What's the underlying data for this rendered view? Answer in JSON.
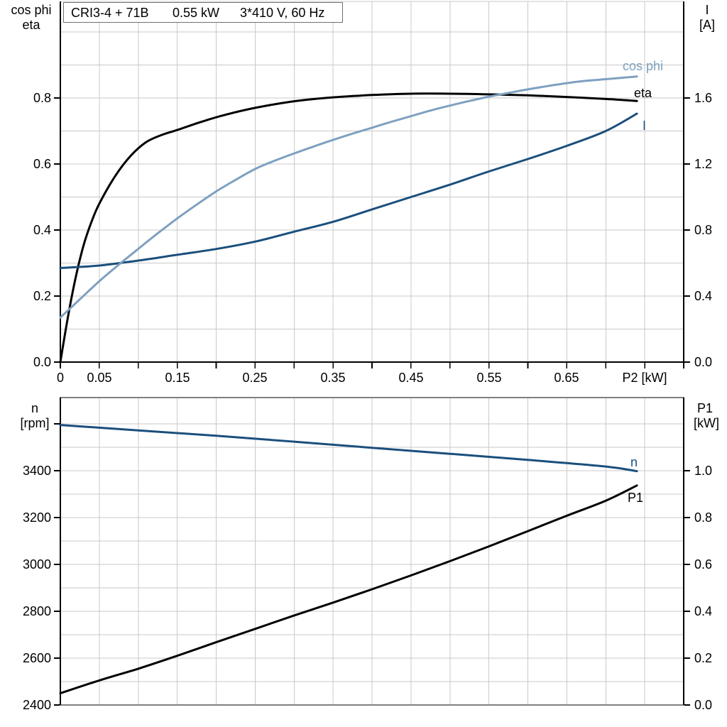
{
  "header": {
    "title_model": "CRI3-4 + 71B",
    "title_power": "0.55 kW",
    "title_supply": "3*410 V, 60 Hz"
  },
  "colors": {
    "dark_blue": "#1a4f7c",
    "light_blue": "#7ea0c0",
    "black": "#000000",
    "grid": "#c9c9c9",
    "frame_gray": "#808080"
  },
  "top_chart": {
    "left_axis_title": [
      "cos phi",
      "eta"
    ],
    "right_axis_title": [
      "I",
      "[A]"
    ],
    "x_axis_title": "P2 [kW]",
    "x_ticks": [
      "0",
      "0.05",
      "0.15",
      "0.25",
      "0.35",
      "0.45",
      "0.55",
      "0.65"
    ],
    "left_ticks": [
      "0.0",
      "0.2",
      "0.4",
      "0.6",
      "0.8"
    ],
    "right_ticks": [
      "0.0",
      "0.4",
      "0.8",
      "1.2",
      "1.6"
    ],
    "curve_labels": {
      "cos_phi": "cos phi",
      "eta": "eta",
      "current": "I"
    }
  },
  "bottom_chart": {
    "left_axis_title": [
      "n",
      "[rpm]"
    ],
    "right_axis_title": [
      "P1",
      "[kW]"
    ],
    "left_ticks": [
      "2400",
      "2600",
      "2800",
      "3000",
      "3200",
      "3400"
    ],
    "right_ticks": [
      "0.0",
      "0.2",
      "0.4",
      "0.6",
      "0.8",
      "1.0"
    ],
    "curve_labels": {
      "n": "n",
      "p1": "P1"
    }
  },
  "chart_data": [
    {
      "type": "line",
      "title": "CRI3-4 + 71B  0.55 kW  3*410 V, 60 Hz",
      "xlabel": "P2 [kW]",
      "xlim": [
        0,
        0.8
      ],
      "x_tick_step": 0.05,
      "ylabel_left": "cos phi / eta",
      "ylim_left": [
        0,
        1.09
      ],
      "ylabel_right": "I [A]",
      "ylim_right": [
        0,
        2.18
      ],
      "grid": true,
      "series": [
        {
          "name": "eta",
          "axis": "left",
          "color_key": "black",
          "points": [
            [
              0,
              0
            ],
            [
              0.01,
              0.14
            ],
            [
              0.02,
              0.26
            ],
            [
              0.03,
              0.355
            ],
            [
              0.04,
              0.425
            ],
            [
              0.05,
              0.48
            ],
            [
              0.07,
              0.562
            ],
            [
              0.09,
              0.624
            ],
            [
              0.11,
              0.666
            ],
            [
              0.13,
              0.688
            ],
            [
              0.15,
              0.703
            ],
            [
              0.18,
              0.727
            ],
            [
              0.21,
              0.748
            ],
            [
              0.25,
              0.77
            ],
            [
              0.3,
              0.79
            ],
            [
              0.35,
              0.802
            ],
            [
              0.4,
              0.809
            ],
            [
              0.45,
              0.813
            ],
            [
              0.5,
              0.813
            ],
            [
              0.55,
              0.811
            ],
            [
              0.6,
              0.808
            ],
            [
              0.65,
              0.803
            ],
            [
              0.7,
              0.797
            ],
            [
              0.74,
              0.791
            ]
          ]
        },
        {
          "name": "I",
          "axis": "right",
          "color_key": "dark_blue",
          "points": [
            [
              0,
              0.57
            ],
            [
              0.05,
              0.585
            ],
            [
              0.1,
              0.615
            ],
            [
              0.15,
              0.65
            ],
            [
              0.2,
              0.685
            ],
            [
              0.25,
              0.73
            ],
            [
              0.3,
              0.79
            ],
            [
              0.35,
              0.85
            ],
            [
              0.4,
              0.925
            ],
            [
              0.45,
              1.0
            ],
            [
              0.5,
              1.075
            ],
            [
              0.55,
              1.155
            ],
            [
              0.6,
              1.23
            ],
            [
              0.65,
              1.31
            ],
            [
              0.7,
              1.4
            ],
            [
              0.74,
              1.505
            ]
          ]
        },
        {
          "name": "cos phi",
          "axis": "left",
          "color_key": "light_blue",
          "points": [
            [
              0,
              0.135
            ],
            [
              0.025,
              0.19
            ],
            [
              0.05,
              0.245
            ],
            [
              0.075,
              0.295
            ],
            [
              0.1,
              0.343
            ],
            [
              0.125,
              0.39
            ],
            [
              0.15,
              0.435
            ],
            [
              0.175,
              0.477
            ],
            [
              0.2,
              0.517
            ],
            [
              0.225,
              0.552
            ],
            [
              0.25,
              0.585
            ],
            [
              0.275,
              0.61
            ],
            [
              0.3,
              0.632
            ],
            [
              0.325,
              0.653
            ],
            [
              0.35,
              0.673
            ],
            [
              0.375,
              0.692
            ],
            [
              0.4,
              0.71
            ],
            [
              0.425,
              0.728
            ],
            [
              0.45,
              0.745
            ],
            [
              0.475,
              0.762
            ],
            [
              0.5,
              0.777
            ],
            [
              0.525,
              0.791
            ],
            [
              0.55,
              0.804
            ],
            [
              0.575,
              0.815
            ],
            [
              0.6,
              0.826
            ],
            [
              0.625,
              0.836
            ],
            [
              0.65,
              0.845
            ],
            [
              0.675,
              0.852
            ],
            [
              0.7,
              0.857
            ],
            [
              0.72,
              0.861
            ],
            [
              0.74,
              0.865
            ]
          ]
        }
      ]
    },
    {
      "type": "line",
      "xlabel": "P2 [kW]",
      "xlim": [
        0,
        0.8
      ],
      "x_tick_step": 0.05,
      "ylabel_left": "n [rpm]",
      "ylim_left": [
        2333,
        3712
      ],
      "ylabel_right": "P1 [kW]",
      "ylim_right": [
        -0.02,
        1.31
      ],
      "grid": true,
      "series": [
        {
          "name": "n",
          "axis": "left",
          "color_key": "dark_blue",
          "points": [
            [
              0,
              3595
            ],
            [
              0.1,
              3572
            ],
            [
              0.2,
              3549
            ],
            [
              0.3,
              3524
            ],
            [
              0.4,
              3498
            ],
            [
              0.5,
              3472
            ],
            [
              0.6,
              3446
            ],
            [
              0.7,
              3418
            ],
            [
              0.74,
              3398
            ]
          ]
        },
        {
          "name": "P1",
          "axis": "right",
          "color_key": "black",
          "points": [
            [
              0,
              0.05
            ],
            [
              0.05,
              0.105
            ],
            [
              0.1,
              0.155
            ],
            [
              0.15,
              0.21
            ],
            [
              0.2,
              0.268
            ],
            [
              0.25,
              0.325
            ],
            [
              0.3,
              0.382
            ],
            [
              0.35,
              0.437
            ],
            [
              0.4,
              0.494
            ],
            [
              0.45,
              0.553
            ],
            [
              0.5,
              0.614
            ],
            [
              0.55,
              0.677
            ],
            [
              0.6,
              0.742
            ],
            [
              0.65,
              0.808
            ],
            [
              0.7,
              0.872
            ],
            [
              0.74,
              0.937
            ]
          ]
        }
      ]
    }
  ]
}
